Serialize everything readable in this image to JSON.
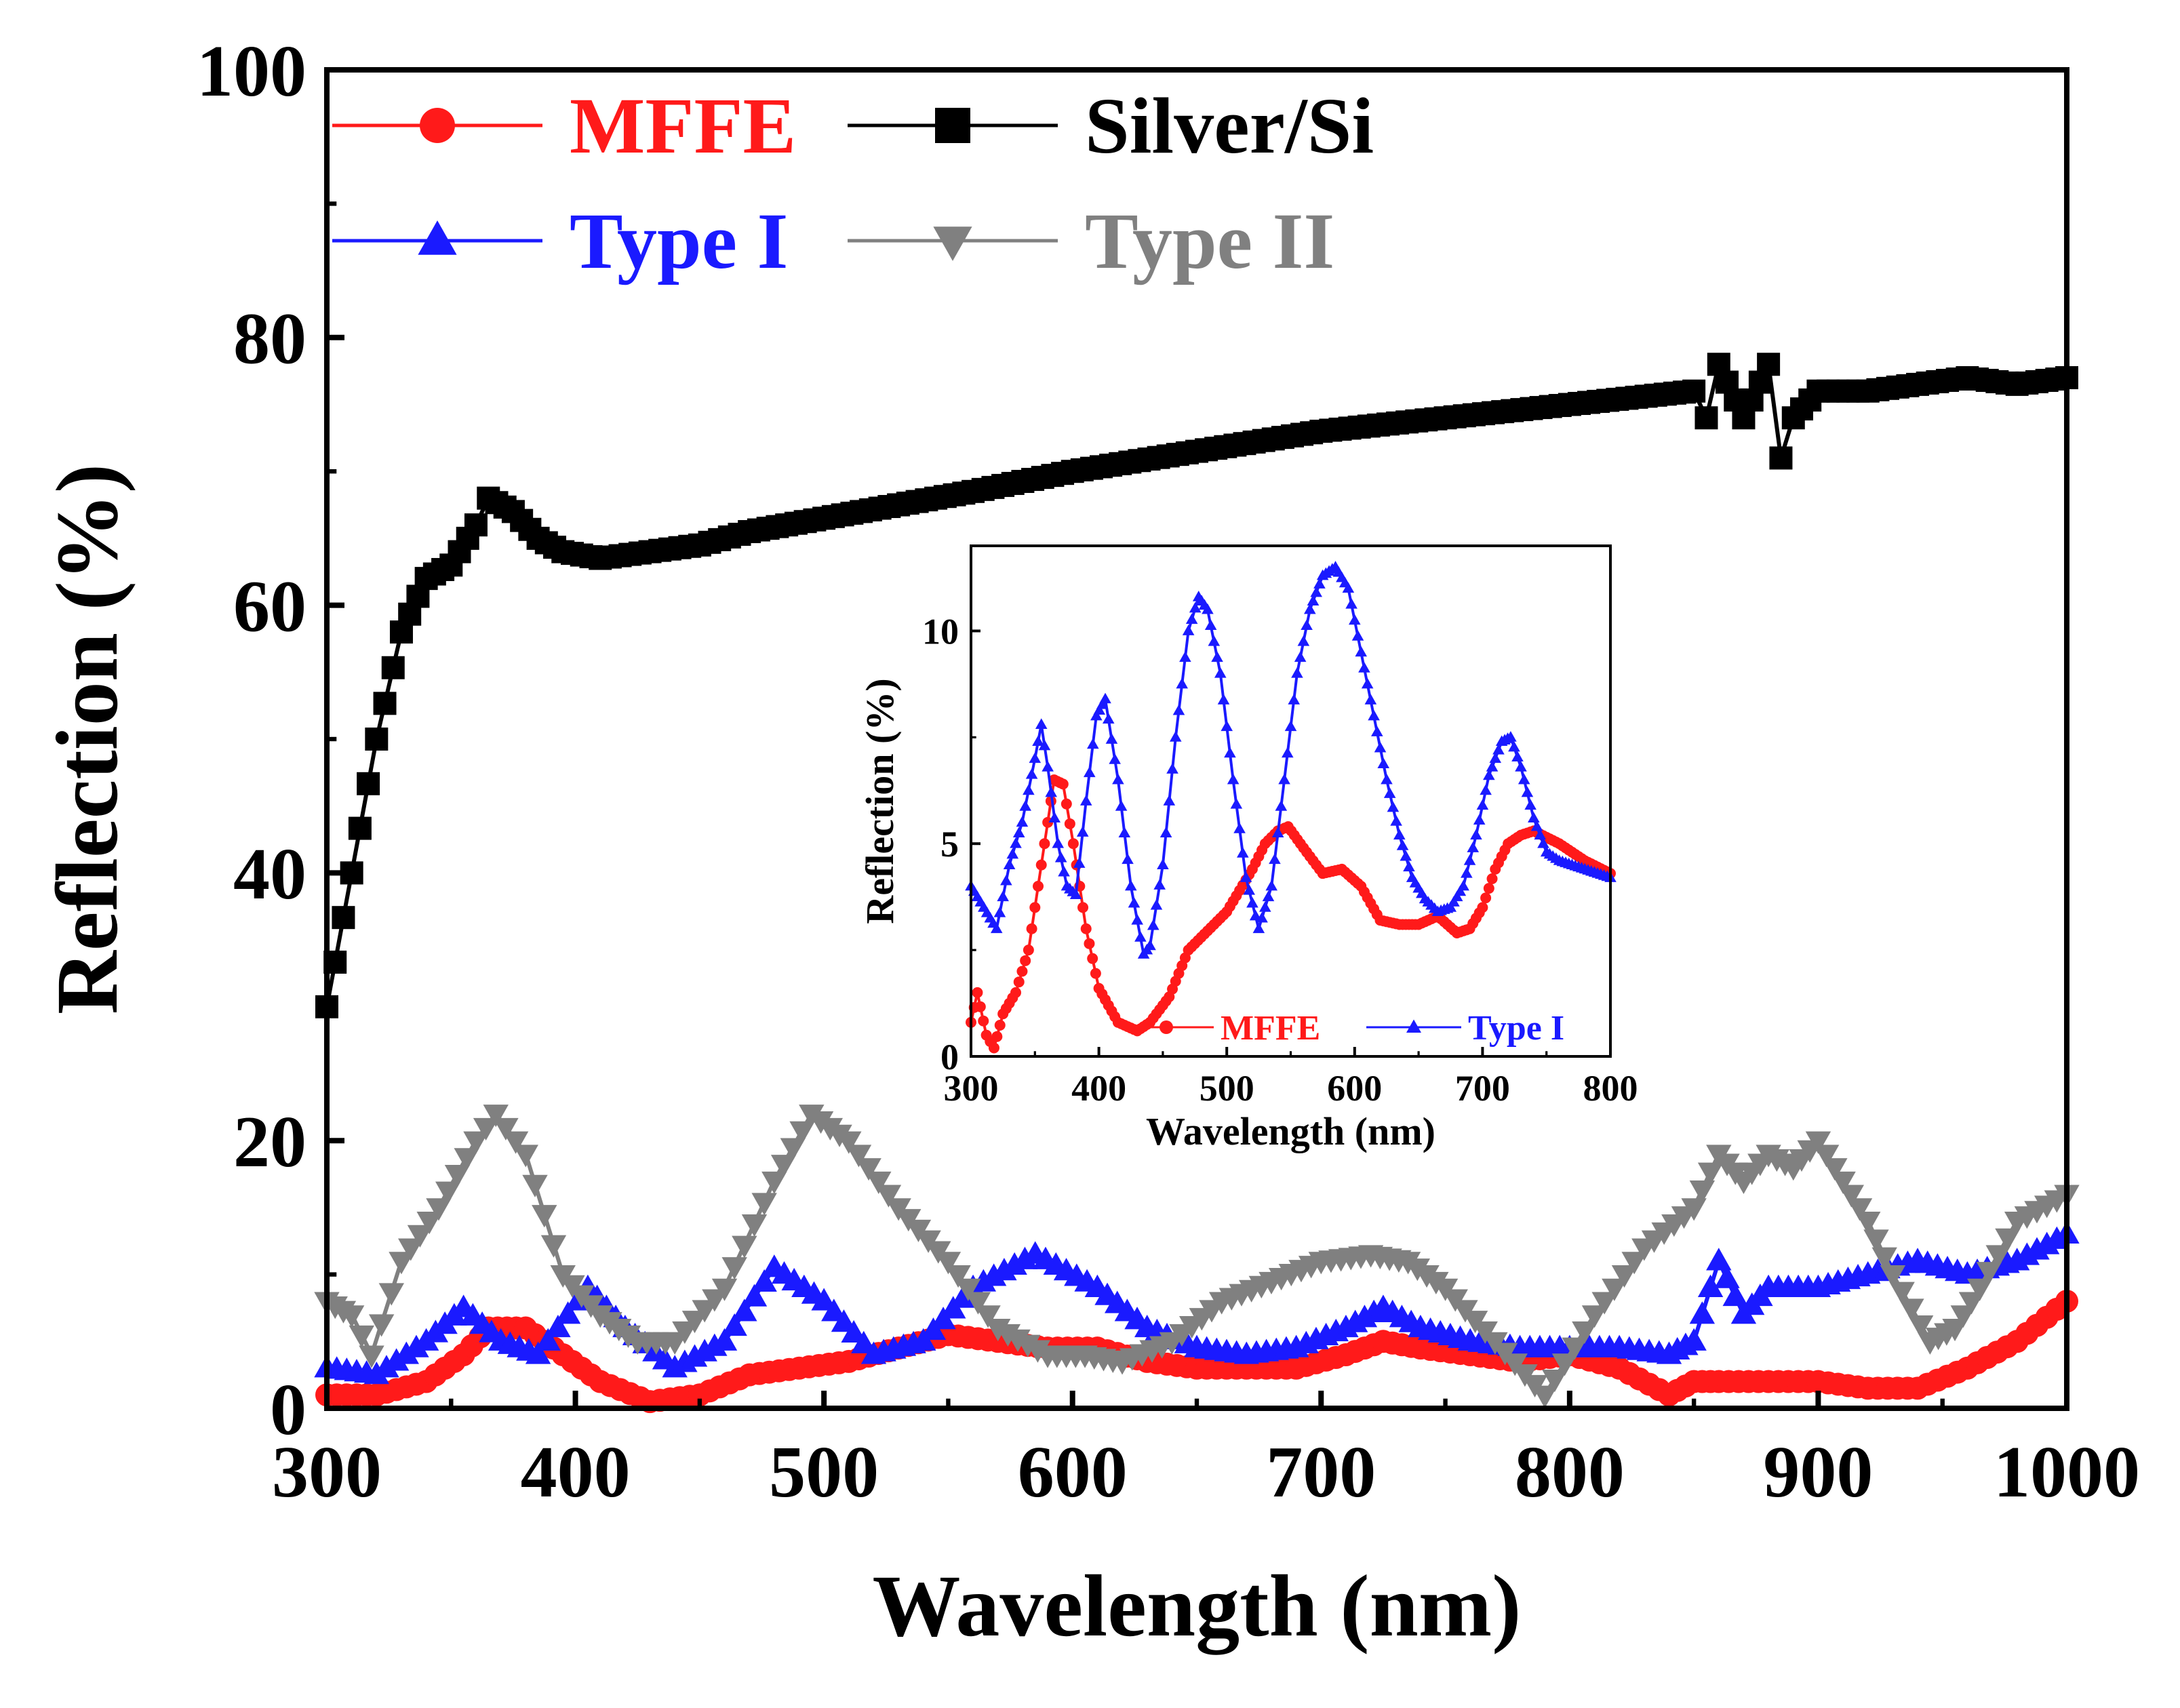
{
  "chart_data": [
    {
      "id": "main",
      "type": "line",
      "xlabel": "Wavelength (nm)",
      "ylabel": "Reflection (%)",
      "xlim": [
        300,
        1000
      ],
      "ylim": [
        0,
        100
      ],
      "xticks": [
        300,
        400,
        500,
        600,
        700,
        800,
        900,
        1000
      ],
      "yticks": [
        0,
        20,
        40,
        60,
        80,
        100
      ],
      "legend_position": "top-left",
      "series": [
        {
          "name": "MFFE",
          "color": "#ff1a1a",
          "marker": "circle",
          "x": [
            300,
            320,
            340,
            355,
            365,
            380,
            395,
            410,
            430,
            450,
            470,
            490,
            510,
            530,
            550,
            570,
            590,
            610,
            630,
            650,
            670,
            690,
            710,
            725,
            740,
            760,
            780,
            800,
            820,
            840,
            850,
            860,
            880,
            900,
            920,
            940,
            960,
            980,
            1000
          ],
          "y": [
            1,
            1,
            2,
            4,
            6,
            6,
            4,
            2,
            0.5,
            1,
            2.5,
            3,
            3.5,
            4.5,
            5.5,
            5,
            4.5,
            4.5,
            3.5,
            3,
            3,
            3,
            4,
            5,
            4.5,
            4,
            3.5,
            4,
            3,
            1,
            2,
            2,
            2,
            2,
            1.5,
            1.5,
            3,
            5,
            8
          ]
        },
        {
          "name": "Silver/Si",
          "color": "#000000",
          "marker": "square",
          "x": [
            300,
            310,
            320,
            330,
            340,
            350,
            360,
            365,
            375,
            385,
            395,
            410,
            430,
            450,
            470,
            500,
            530,
            560,
            600,
            650,
            700,
            750,
            800,
            850,
            855,
            860,
            870,
            880,
            885,
            890,
            900,
            920,
            940,
            960,
            980,
            1000
          ],
          "y": [
            30,
            40,
            50,
            58,
            62,
            63,
            66,
            68,
            67,
            65,
            64,
            63.5,
            64,
            64.5,
            65.5,
            66.5,
            67.5,
            68.5,
            70,
            71.5,
            73,
            74,
            75,
            76,
            74,
            78,
            74,
            78,
            71,
            74,
            76,
            76,
            76.5,
            77,
            76.5,
            77
          ]
        },
        {
          "name": "Type I",
          "color": "#1a1aff",
          "marker": "triangle-up",
          "x": [
            300,
            320,
            340,
            355,
            370,
            385,
            405,
            420,
            440,
            460,
            480,
            500,
            520,
            540,
            560,
            585,
            610,
            630,
            650,
            670,
            690,
            710,
            725,
            740,
            760,
            780,
            800,
            820,
            840,
            850,
            860,
            870,
            880,
            900,
            920,
            940,
            960,
            980,
            1000
          ],
          "y": [
            3,
            2.5,
            5,
            7.5,
            5,
            4,
            9,
            6,
            3,
            5,
            10.5,
            8,
            4,
            5,
            9,
            11.5,
            9,
            6,
            4.5,
            4,
            4.5,
            6,
            7.5,
            6,
            5,
            4.5,
            4.5,
            4.5,
            4,
            5,
            11,
            7,
            9,
            9,
            10,
            11,
            10,
            11,
            13
          ]
        },
        {
          "name": "Type II",
          "color": "#808080",
          "marker": "triangle-down",
          "x": [
            300,
            310,
            318,
            330,
            345,
            360,
            368,
            380,
            395,
            410,
            425,
            440,
            460,
            480,
            495,
            510,
            530,
            550,
            570,
            590,
            605,
            620,
            640,
            660,
            680,
            700,
            720,
            735,
            750,
            770,
            790,
            810,
            830,
            850,
            860,
            870,
            880,
            890,
            900,
            910,
            920,
            930,
            945,
            955,
            965,
            980,
            1000
          ],
          "y": [
            8,
            7,
            4,
            11,
            15,
            20,
            22,
            19,
            10,
            7,
            5,
            5,
            9,
            17,
            22,
            20,
            15,
            11,
            6,
            4,
            4,
            3.5,
            5,
            8,
            9.5,
            11,
            11.5,
            11,
            9,
            5,
            1,
            7,
            12,
            15,
            19,
            17,
            19,
            18,
            20,
            17,
            14,
            10,
            5,
            6,
            9,
            14,
            16
          ]
        }
      ]
    },
    {
      "id": "inset",
      "type": "line",
      "xlabel": "Wavelength (nm)",
      "ylabel": "Reflection (%)",
      "xlim": [
        300,
        800
      ],
      "ylim": [
        0,
        12
      ],
      "xticks": [
        300,
        400,
        500,
        600,
        700,
        800
      ],
      "yticks": [
        0,
        5,
        10
      ],
      "legend_position": "bottom-right",
      "series": [
        {
          "name": "MFFE",
          "color": "#ff1a1a",
          "marker": "circle",
          "x": [
            300,
            305,
            312,
            318,
            325,
            335,
            345,
            355,
            365,
            372,
            380,
            390,
            400,
            415,
            430,
            440,
            455,
            470,
            480,
            490,
            500,
            510,
            520,
            530,
            540,
            548,
            560,
            575,
            590,
            605,
            620,
            635,
            650,
            665,
            680,
            690,
            700,
            710,
            720,
            730,
            740,
            760,
            780,
            800
          ],
          "y": [
            0.8,
            1.5,
            0.5,
            0.2,
            1,
            1.5,
            2.5,
            4.5,
            6.5,
            6.4,
            5,
            3,
            1.6,
            0.8,
            0.6,
            0.8,
            1.4,
            2.5,
            2.8,
            3.1,
            3.4,
            3.9,
            4.4,
            5,
            5.3,
            5.4,
            4.9,
            4.3,
            4.4,
            4,
            3.2,
            3.1,
            3.1,
            3.3,
            2.9,
            3,
            3.5,
            4.4,
            5,
            5.2,
            5.3,
            5,
            4.6,
            4.3
          ]
        },
        {
          "name": "Type I",
          "color": "#1a1aff",
          "marker": "triangle-up",
          "x": [
            300,
            310,
            320,
            330,
            340,
            350,
            355,
            360,
            368,
            375,
            382,
            390,
            398,
            405,
            415,
            425,
            435,
            440,
            450,
            460,
            470,
            478,
            485,
            495,
            505,
            515,
            525,
            535,
            545,
            555,
            565,
            575,
            585,
            595,
            605,
            615,
            625,
            635,
            645,
            655,
            665,
            675,
            685,
            695,
            705,
            715,
            722,
            730,
            740,
            750,
            760,
            780,
            800
          ],
          "y": [
            4,
            3.5,
            3,
            4.5,
            5.5,
            7,
            7.8,
            6.8,
            5,
            4,
            3.8,
            6,
            8,
            8.4,
            6.5,
            4,
            2.4,
            2.6,
            4.5,
            7.5,
            10,
            10.8,
            10.5,
            9,
            6.5,
            4.2,
            3,
            4,
            6.5,
            9,
            10.5,
            11.3,
            11.5,
            11,
            9.5,
            8,
            6.5,
            5.2,
            4.2,
            3.7,
            3.4,
            3.5,
            4,
            5.2,
            6.6,
            7.4,
            7.5,
            6.8,
            5.6,
            4.8,
            4.6,
            4.4,
            4.2
          ]
        }
      ]
    }
  ]
}
